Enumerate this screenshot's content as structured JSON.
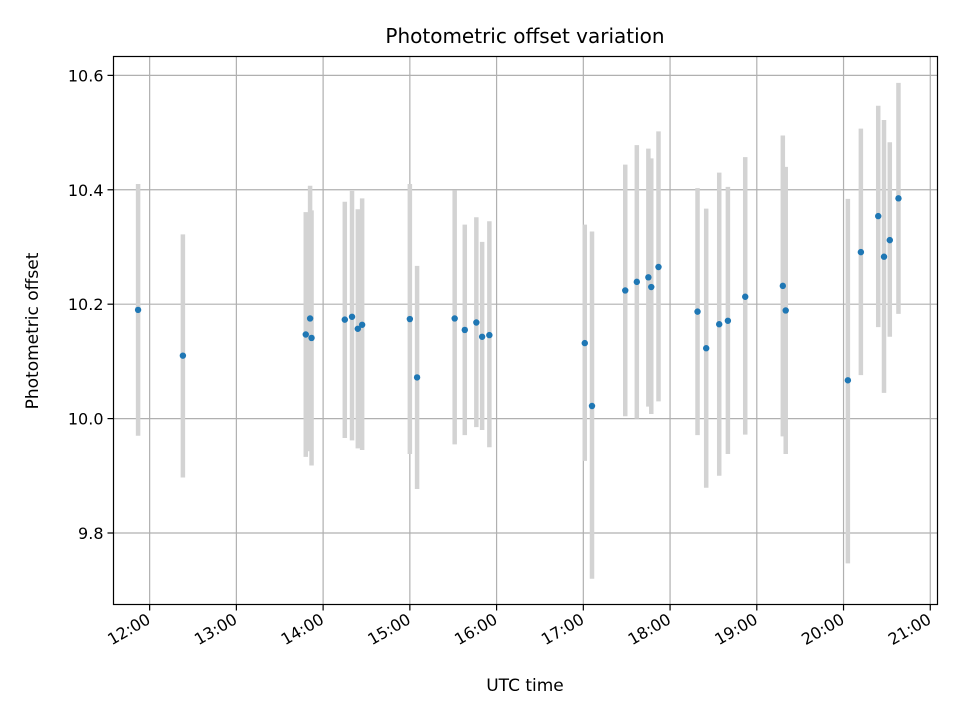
{
  "chart_data": {
    "type": "scatter",
    "title": "Photometric offset variation",
    "xlabel": "UTC time",
    "ylabel": "Photometric offset",
    "x_ticks": [
      "12:00",
      "13:00",
      "14:00",
      "15:00",
      "16:00",
      "17:00",
      "18:00",
      "19:00",
      "20:00",
      "21:00"
    ],
    "y_ticks": [
      "9.8",
      "10.0",
      "10.2",
      "10.4",
      "10.6"
    ],
    "xlim": [
      "11:35",
      "21:05"
    ],
    "ylim": [
      9.675,
      10.633
    ],
    "grid": true,
    "colors": {
      "points": "#1f77b4",
      "errorbars": "#d3d3d3",
      "grid": "#b0b0b0"
    },
    "points": [
      {
        "x": "11:52",
        "y": 10.19,
        "ylow": 9.97,
        "yhigh": 10.41
      },
      {
        "x": "12:23",
        "y": 10.11,
        "ylow": 9.897,
        "yhigh": 10.322
      },
      {
        "x": "13:48",
        "y": 10.147,
        "ylow": 9.933,
        "yhigh": 10.361
      },
      {
        "x": "13:51",
        "y": 10.175,
        "ylow": 9.943,
        "yhigh": 10.407
      },
      {
        "x": "13:52",
        "y": 10.141,
        "ylow": 9.918,
        "yhigh": 10.364
      },
      {
        "x": "14:15",
        "y": 10.173,
        "ylow": 9.966,
        "yhigh": 10.379
      },
      {
        "x": "14:20",
        "y": 10.178,
        "ylow": 9.962,
        "yhigh": 10.398
      },
      {
        "x": "14:24",
        "y": 10.157,
        "ylow": 9.948,
        "yhigh": 10.366
      },
      {
        "x": "14:27",
        "y": 10.164,
        "ylow": 9.945,
        "yhigh": 10.385
      },
      {
        "x": "15:00",
        "y": 10.174,
        "ylow": 9.938,
        "yhigh": 10.41
      },
      {
        "x": "15:05",
        "y": 10.072,
        "ylow": 9.877,
        "yhigh": 10.267
      },
      {
        "x": "15:31",
        "y": 10.175,
        "ylow": 9.955,
        "yhigh": 10.399
      },
      {
        "x": "15:38",
        "y": 10.155,
        "ylow": 9.971,
        "yhigh": 10.339
      },
      {
        "x": "15:46",
        "y": 10.168,
        "ylow": 9.985,
        "yhigh": 10.352
      },
      {
        "x": "15:50",
        "y": 10.143,
        "ylow": 9.98,
        "yhigh": 10.309
      },
      {
        "x": "15:55",
        "y": 10.146,
        "ylow": 9.95,
        "yhigh": 10.345
      },
      {
        "x": "17:01",
        "y": 10.132,
        "ylow": 9.926,
        "yhigh": 10.339
      },
      {
        "x": "17:06",
        "y": 10.022,
        "ylow": 9.72,
        "yhigh": 10.327
      },
      {
        "x": "17:29",
        "y": 10.224,
        "ylow": 10.004,
        "yhigh": 10.444
      },
      {
        "x": "17:37",
        "y": 10.239,
        "ylow": 10.0,
        "yhigh": 10.478
      },
      {
        "x": "17:45",
        "y": 10.247,
        "ylow": 10.021,
        "yhigh": 10.472
      },
      {
        "x": "17:47",
        "y": 10.23,
        "ylow": 10.008,
        "yhigh": 10.455
      },
      {
        "x": "17:52",
        "y": 10.265,
        "ylow": 10.03,
        "yhigh": 10.502
      },
      {
        "x": "18:19",
        "y": 10.187,
        "ylow": 9.971,
        "yhigh": 10.403
      },
      {
        "x": "18:25",
        "y": 10.123,
        "ylow": 9.879,
        "yhigh": 10.367
      },
      {
        "x": "18:34",
        "y": 10.165,
        "ylow": 9.9,
        "yhigh": 10.43
      },
      {
        "x": "18:40",
        "y": 10.171,
        "ylow": 9.938,
        "yhigh": 10.405
      },
      {
        "x": "18:52",
        "y": 10.213,
        "ylow": 9.972,
        "yhigh": 10.457
      },
      {
        "x": "19:18",
        "y": 10.232,
        "ylow": 9.969,
        "yhigh": 10.495
      },
      {
        "x": "19:20",
        "y": 10.189,
        "ylow": 9.938,
        "yhigh": 10.44
      },
      {
        "x": "20:03",
        "y": 10.067,
        "ylow": 9.747,
        "yhigh": 10.384
      },
      {
        "x": "20:12",
        "y": 10.291,
        "ylow": 10.076,
        "yhigh": 10.507
      },
      {
        "x": "20:24",
        "y": 10.354,
        "ylow": 10.16,
        "yhigh": 10.547
      },
      {
        "x": "20:28",
        "y": 10.283,
        "ylow": 10.045,
        "yhigh": 10.522
      },
      {
        "x": "20:32",
        "y": 10.312,
        "ylow": 10.143,
        "yhigh": 10.483
      },
      {
        "x": "20:38",
        "y": 10.385,
        "ylow": 10.183,
        "yhigh": 10.587
      }
    ]
  }
}
